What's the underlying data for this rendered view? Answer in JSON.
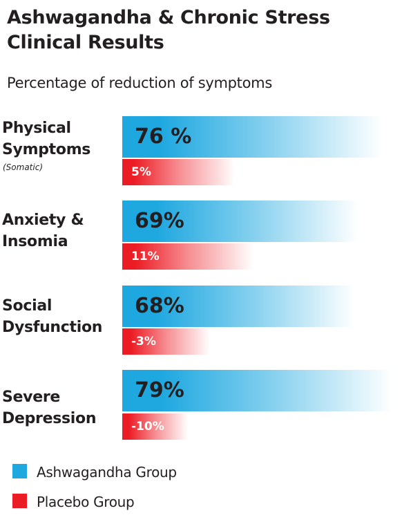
{
  "title_line1": "Ashwagandha & Chronic Stress",
  "title_line2": "Clinical Results",
  "subtitle": "Percentage of reduction of symptoms",
  "colors": {
    "ashwagandha": "#1fa8e0",
    "placebo": "#ec1c24"
  },
  "chart_data": {
    "type": "bar",
    "orientation": "horizontal",
    "categories": [
      "Physical Symptoms",
      "Anxiety & Insomia",
      "Social Dysfunction",
      "Severe Depression"
    ],
    "category_notes": [
      "(Somatic)",
      "",
      "",
      ""
    ],
    "series": [
      {
        "name": "Ashwagandha Group",
        "values": [
          76,
          69,
          68,
          79
        ],
        "labels": [
          "76 %",
          "69%",
          "68%",
          "79%"
        ]
      },
      {
        "name": "Placebo Group",
        "values": [
          5,
          11,
          -3,
          -10
        ],
        "labels": [
          "5%",
          "11%",
          "-3%",
          "-10%"
        ]
      }
    ],
    "legend_position": "bottom-left"
  },
  "categories_display": [
    {
      "line1": "Physical",
      "line2": "Symptoms",
      "note": "(Somatic)"
    },
    {
      "line1": "Anxiety &",
      "line2": "Insomia",
      "note": ""
    },
    {
      "line1": "Social",
      "line2": "Dysfunction",
      "note": ""
    },
    {
      "line1": "Severe",
      "line2": "Depression",
      "note": ""
    }
  ],
  "legend": {
    "ashwagandha": "Ashwagandha Group",
    "placebo": "Placebo Group"
  }
}
